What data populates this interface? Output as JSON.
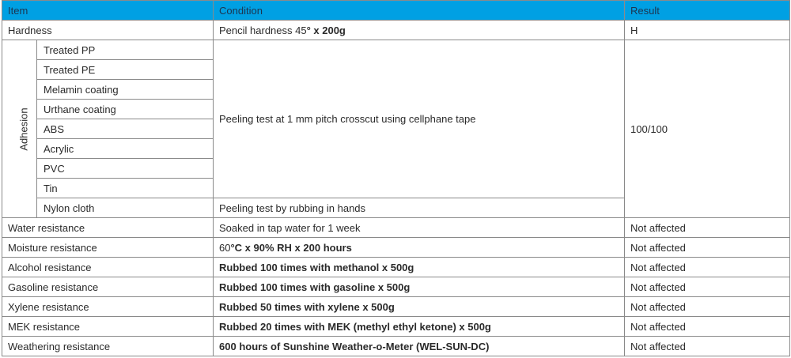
{
  "header": {
    "item": "Item",
    "condition": "Condition",
    "result": "Result"
  },
  "hardness": {
    "item": "Hardness",
    "condition_a": "Pencil hardness 45",
    "condition_b": "° x 200g",
    "result": "H"
  },
  "adhesion": {
    "label": "Adhesion",
    "items": [
      "Treated PP",
      "Treated PE",
      "Melamin coating",
      "Urthane coating",
      "ABS",
      "Acrylic",
      "PVC",
      "Tin",
      "Nylon cloth"
    ],
    "condition_main": "Peeling test at 1 mm pitch crosscut using cellphane tape",
    "condition_nylon": "Peeling test by rubbing in hands",
    "result": "100/100"
  },
  "rows": [
    {
      "item": "Water resistance",
      "condition": "Soaked in tap water for 1 week",
      "result": "Not affected",
      "bold": false
    },
    {
      "item": "Moisture resistance",
      "condition_a": "60",
      "condition": "°C x 90% RH x 200 hours",
      "result": "Not affected",
      "bold": true
    },
    {
      "item": "Alcohol resistance",
      "condition": "Rubbed 100 times with methanol x 500g",
      "result": "Not affected",
      "bold": true
    },
    {
      "item": "Gasoline resistance",
      "condition": "Rubbed 100 times with gasoline x 500g",
      "result": "Not affected",
      "bold": true
    },
    {
      "item": "Xylene resistance",
      "condition": "Rubbed 50 times with xylene x 500g",
      "result": "Not affected",
      "bold": true
    },
    {
      "item": "MEK resistance",
      "condition": "Rubbed 20 times with MEK (methyl ethyl ketone) x 500g",
      "result": "Not affected",
      "bold": true
    },
    {
      "item": "Weathering resistance",
      "condition": "600 hours of Sunshine Weather-o-Meter (WEL-SUN-DC)",
      "result": "Not affected",
      "bold": true
    }
  ],
  "colors": {
    "header_bg": "#00a0e3",
    "border": "#8a8a8a"
  }
}
